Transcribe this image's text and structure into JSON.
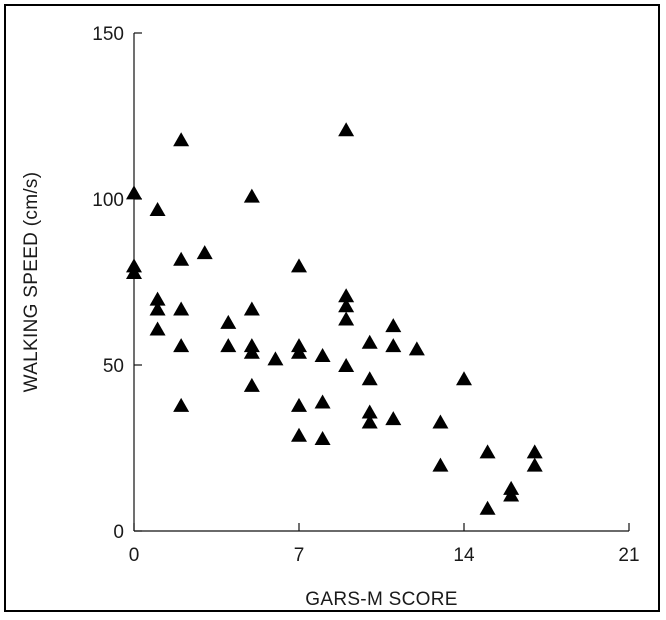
{
  "chart_data": {
    "type": "scatter",
    "xlabel": "GARS-M SCORE",
    "ylabel": "WALKING SPEED (cm/s)",
    "xlim": [
      0,
      21
    ],
    "ylim": [
      0,
      150
    ],
    "xticks": [
      "0",
      "7",
      "14",
      "21"
    ],
    "yticks": [
      "0",
      "50",
      "100",
      "150"
    ],
    "marker": "filled-triangle",
    "grid": false,
    "legend": "none",
    "points": [
      {
        "x": 0,
        "y": 102
      },
      {
        "x": 0,
        "y": 80
      },
      {
        "x": 0,
        "y": 78
      },
      {
        "x": 1,
        "y": 97
      },
      {
        "x": 1,
        "y": 70
      },
      {
        "x": 1,
        "y": 67
      },
      {
        "x": 1,
        "y": 61
      },
      {
        "x": 2,
        "y": 118
      },
      {
        "x": 2,
        "y": 82
      },
      {
        "x": 2,
        "y": 67
      },
      {
        "x": 2,
        "y": 56
      },
      {
        "x": 2,
        "y": 38
      },
      {
        "x": 3,
        "y": 84
      },
      {
        "x": 4,
        "y": 63
      },
      {
        "x": 4,
        "y": 56
      },
      {
        "x": 5,
        "y": 101
      },
      {
        "x": 5,
        "y": 67
      },
      {
        "x": 5,
        "y": 56
      },
      {
        "x": 5,
        "y": 54
      },
      {
        "x": 5,
        "y": 44
      },
      {
        "x": 6,
        "y": 52
      },
      {
        "x": 7,
        "y": 80
      },
      {
        "x": 7,
        "y": 56
      },
      {
        "x": 7,
        "y": 54
      },
      {
        "x": 7,
        "y": 38
      },
      {
        "x": 7,
        "y": 29
      },
      {
        "x": 8,
        "y": 53
      },
      {
        "x": 8,
        "y": 39
      },
      {
        "x": 8,
        "y": 28
      },
      {
        "x": 9,
        "y": 121
      },
      {
        "x": 9,
        "y": 71
      },
      {
        "x": 9,
        "y": 68
      },
      {
        "x": 9,
        "y": 64
      },
      {
        "x": 9,
        "y": 50
      },
      {
        "x": 10,
        "y": 57
      },
      {
        "x": 10,
        "y": 46
      },
      {
        "x": 10,
        "y": 36
      },
      {
        "x": 10,
        "y": 33
      },
      {
        "x": 11,
        "y": 62
      },
      {
        "x": 11,
        "y": 56
      },
      {
        "x": 11,
        "y": 34
      },
      {
        "x": 12,
        "y": 55
      },
      {
        "x": 13,
        "y": 33
      },
      {
        "x": 13,
        "y": 20
      },
      {
        "x": 14,
        "y": 46
      },
      {
        "x": 15,
        "y": 24
      },
      {
        "x": 15,
        "y": 7
      },
      {
        "x": 16,
        "y": 13
      },
      {
        "x": 16,
        "y": 11
      },
      {
        "x": 17,
        "y": 24
      },
      {
        "x": 17,
        "y": 20
      }
    ]
  }
}
